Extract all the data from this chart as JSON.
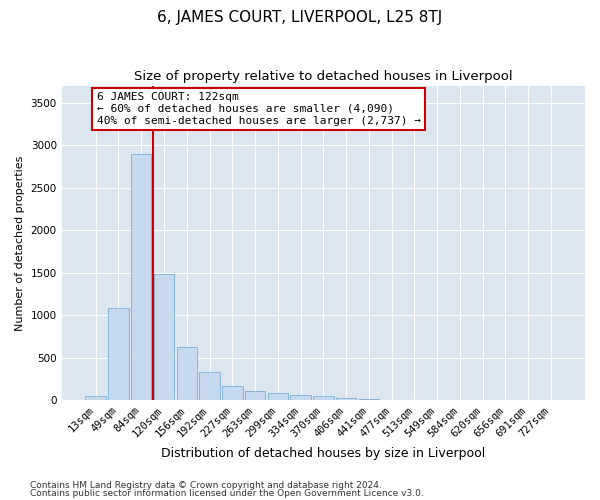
{
  "title": "6, JAMES COURT, LIVERPOOL, L25 8TJ",
  "subtitle": "Size of property relative to detached houses in Liverpool",
  "xlabel": "Distribution of detached houses by size in Liverpool",
  "ylabel": "Number of detached properties",
  "categories": [
    "13sqm",
    "49sqm",
    "84sqm",
    "120sqm",
    "156sqm",
    "192sqm",
    "227sqm",
    "263sqm",
    "299sqm",
    "334sqm",
    "370sqm",
    "406sqm",
    "441sqm",
    "477sqm",
    "513sqm",
    "549sqm",
    "584sqm",
    "620sqm",
    "656sqm",
    "691sqm",
    "727sqm"
  ],
  "values": [
    50,
    1090,
    2900,
    1480,
    630,
    330,
    170,
    105,
    90,
    60,
    45,
    30,
    15,
    5,
    3,
    2,
    1,
    1,
    0,
    0,
    0
  ],
  "bar_color": "#c6d9ee",
  "bar_edge_color": "#7aadd4",
  "vline_color": "#cc0000",
  "annotation_box_text": "6 JAMES COURT: 122sqm\n← 60% of detached houses are smaller (4,090)\n40% of semi-detached houses are larger (2,737) →",
  "ylim": [
    0,
    3700
  ],
  "yticks": [
    0,
    500,
    1000,
    1500,
    2000,
    2500,
    3000,
    3500
  ],
  "plot_bg_color": "#dce6f0",
  "grid_color": "#ffffff",
  "footer_line1": "Contains HM Land Registry data © Crown copyright and database right 2024.",
  "footer_line2": "Contains public sector information licensed under the Open Government Licence v3.0.",
  "title_fontsize": 11,
  "subtitle_fontsize": 9.5,
  "xlabel_fontsize": 9,
  "ylabel_fontsize": 8,
  "tick_fontsize": 7.5,
  "annotation_fontsize": 8,
  "footer_fontsize": 6.5
}
